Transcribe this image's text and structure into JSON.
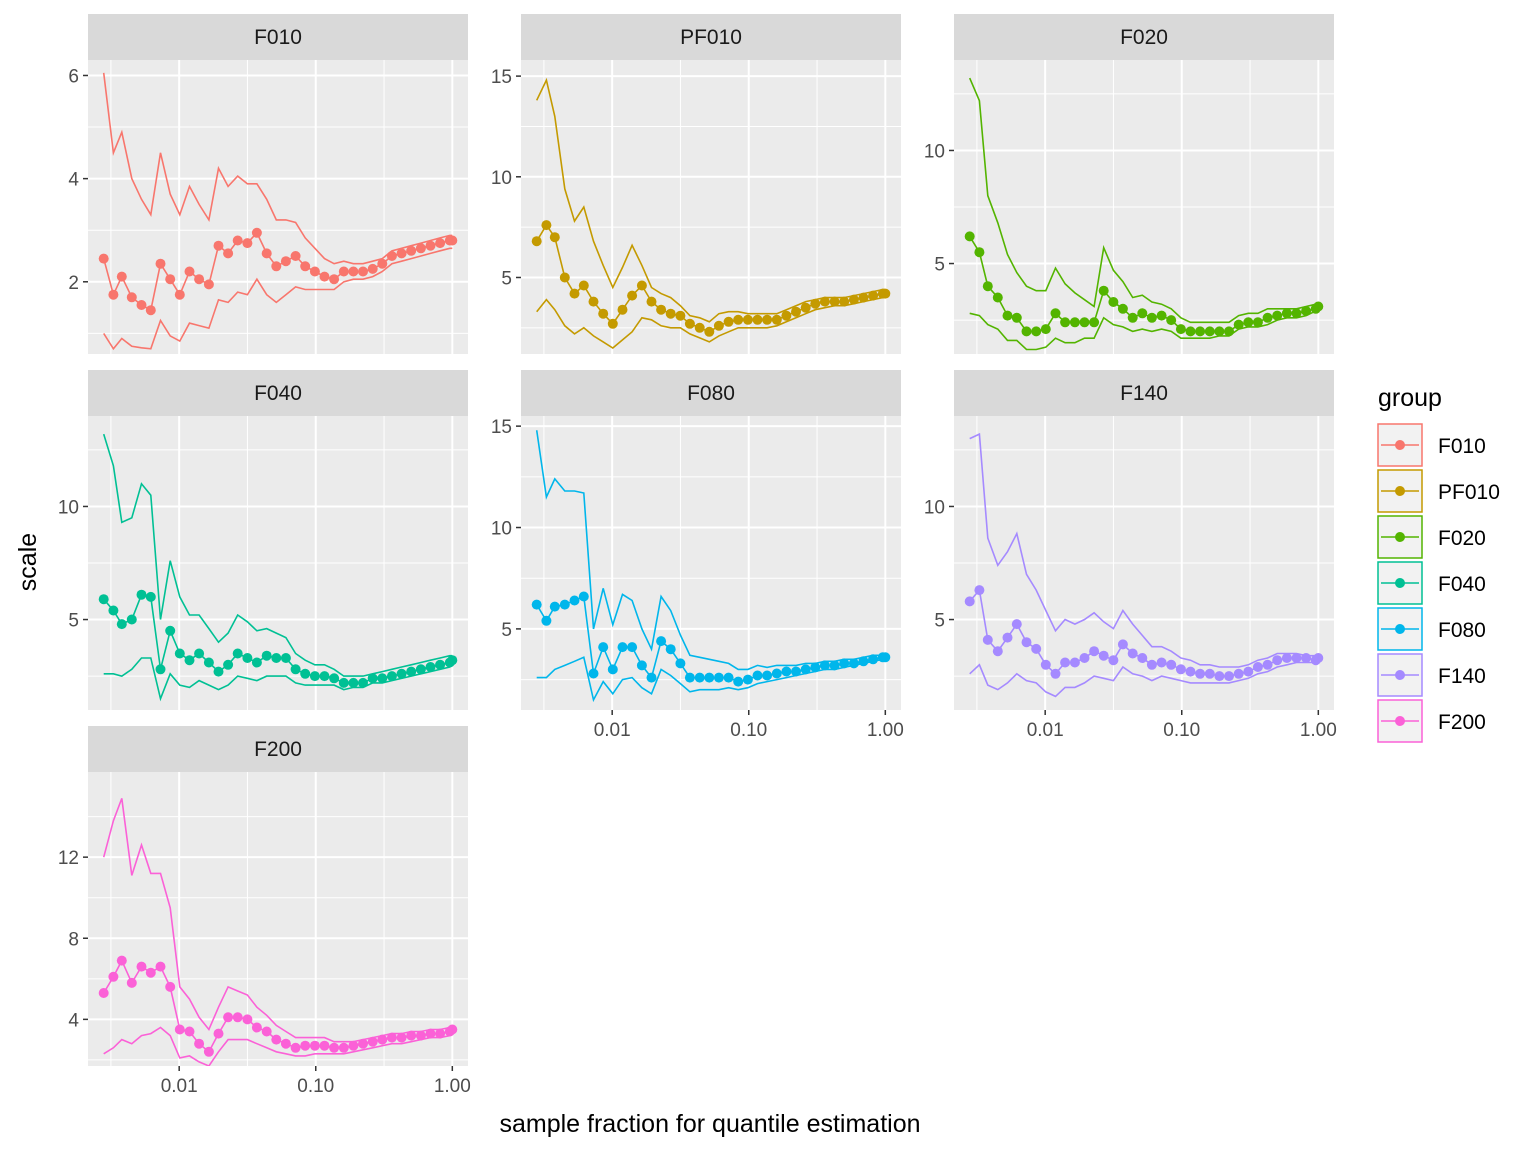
{
  "chart_data": {
    "type": "line",
    "xlabel": "sample fraction for quantile estimation",
    "ylabel": "scale",
    "x_scale": "log10",
    "x_ticks": [
      0.01,
      0.1,
      1.0
    ],
    "x_tick_labels": [
      "0.01",
      "0.10",
      "1.00"
    ],
    "xlim": [
      0.0028,
      1.0
    ],
    "grid": true,
    "legend": {
      "title": "group",
      "placement": "right",
      "entries": [
        "F010",
        "PF010",
        "F020",
        "F040",
        "F080",
        "F140",
        "F200"
      ]
    },
    "x": [
      0.0028,
      0.0033,
      0.0038,
      0.0045,
      0.0053,
      0.0062,
      0.0073,
      0.0086,
      0.0101,
      0.0119,
      0.014,
      0.0165,
      0.0194,
      0.0228,
      0.0268,
      0.0316,
      0.0371,
      0.0437,
      0.0514,
      0.0605,
      0.0712,
      0.0837,
      0.0985,
      0.1159,
      0.1363,
      0.1604,
      0.1887,
      0.222,
      0.2611,
      0.3072,
      0.3614,
      0.4252,
      0.5002,
      0.5885,
      0.6923,
      0.8144,
      0.9581,
      1.0
    ],
    "panels": [
      {
        "name": "F010",
        "color": "#F8766D",
        "ylim": [
          0.6,
          6.3
        ],
        "y_ticks": [
          2,
          4,
          6
        ],
        "scale": [
          2.45,
          1.75,
          2.1,
          1.7,
          1.55,
          1.45,
          2.35,
          2.05,
          1.75,
          2.2,
          2.05,
          1.95,
          2.7,
          2.55,
          2.8,
          2.75,
          2.95,
          2.55,
          2.3,
          2.4,
          2.5,
          2.3,
          2.2,
          2.1,
          2.05,
          2.2,
          2.2,
          2.2,
          2.25,
          2.35,
          2.5,
          2.55,
          2.6,
          2.65,
          2.7,
          2.75,
          2.8,
          2.8
        ],
        "upper": [
          6.05,
          4.5,
          4.9,
          4.0,
          3.6,
          3.3,
          4.5,
          3.7,
          3.3,
          3.85,
          3.5,
          3.2,
          4.2,
          3.85,
          4.05,
          3.9,
          3.9,
          3.6,
          3.2,
          3.2,
          3.15,
          2.85,
          2.65,
          2.45,
          2.35,
          2.4,
          2.35,
          2.35,
          2.4,
          2.45,
          2.6,
          2.65,
          2.7,
          2.75,
          2.8,
          2.85,
          2.9,
          2.9
        ],
        "lower": [
          1.0,
          0.7,
          0.9,
          0.75,
          0.72,
          0.7,
          1.25,
          0.95,
          0.85,
          1.2,
          1.15,
          1.1,
          1.65,
          1.6,
          1.8,
          1.75,
          2.05,
          1.75,
          1.6,
          1.75,
          1.9,
          1.85,
          1.85,
          1.85,
          1.85,
          2.0,
          2.05,
          2.05,
          2.1,
          2.2,
          2.35,
          2.4,
          2.45,
          2.5,
          2.55,
          2.6,
          2.65,
          2.65
        ]
      },
      {
        "name": "PF010",
        "color": "#C49A00",
        "ylim": [
          1.2,
          15.8
        ],
        "y_ticks": [
          5,
          10,
          15
        ],
        "scale": [
          6.8,
          7.6,
          7.0,
          5.0,
          4.2,
          4.6,
          3.8,
          3.2,
          2.7,
          3.4,
          4.1,
          4.6,
          3.8,
          3.4,
          3.2,
          3.1,
          2.7,
          2.5,
          2.3,
          2.6,
          2.8,
          2.9,
          2.9,
          2.9,
          2.9,
          2.9,
          3.1,
          3.3,
          3.5,
          3.7,
          3.8,
          3.8,
          3.8,
          3.9,
          4.0,
          4.1,
          4.2,
          4.2
        ],
        "upper": [
          13.8,
          14.8,
          13.0,
          9.4,
          7.8,
          8.5,
          6.8,
          5.6,
          4.5,
          5.5,
          6.6,
          5.6,
          4.5,
          4.2,
          4.0,
          3.6,
          3.1,
          3.0,
          2.8,
          3.2,
          3.3,
          3.3,
          3.2,
          3.2,
          3.2,
          3.2,
          3.4,
          3.6,
          3.8,
          3.9,
          4.0,
          4.0,
          4.0,
          4.1,
          4.2,
          4.3,
          4.4,
          4.4
        ],
        "lower": [
          3.3,
          3.9,
          3.4,
          2.6,
          2.2,
          2.5,
          2.1,
          1.8,
          1.5,
          1.9,
          2.3,
          3.0,
          2.9,
          2.6,
          2.5,
          2.5,
          2.2,
          2.0,
          1.8,
          2.1,
          2.3,
          2.5,
          2.5,
          2.5,
          2.5,
          2.6,
          2.8,
          3.0,
          3.2,
          3.4,
          3.5,
          3.6,
          3.6,
          3.7,
          3.8,
          3.9,
          4.0,
          4.0
        ]
      },
      {
        "name": "F020",
        "color": "#53B400",
        "ylim": [
          1.0,
          14.0
        ],
        "y_ticks": [
          5,
          10
        ],
        "scale": [
          6.2,
          5.5,
          4.0,
          3.5,
          2.7,
          2.6,
          2.0,
          2.0,
          2.1,
          2.8,
          2.4,
          2.4,
          2.4,
          2.4,
          3.8,
          3.3,
          3.0,
          2.6,
          2.8,
          2.6,
          2.7,
          2.5,
          2.1,
          2.0,
          2.0,
          2.0,
          2.0,
          2.0,
          2.3,
          2.4,
          2.4,
          2.6,
          2.7,
          2.8,
          2.8,
          2.9,
          3.0,
          3.1
        ],
        "upper": [
          13.2,
          12.2,
          8.0,
          6.8,
          5.4,
          4.6,
          4.0,
          3.8,
          3.8,
          4.8,
          4.1,
          3.7,
          3.4,
          3.1,
          5.7,
          4.7,
          4.2,
          3.5,
          3.6,
          3.3,
          3.2,
          3.0,
          2.6,
          2.4,
          2.4,
          2.4,
          2.4,
          2.4,
          2.7,
          2.8,
          2.8,
          3.0,
          3.0,
          3.0,
          3.0,
          3.1,
          3.2,
          3.2
        ],
        "lower": [
          2.8,
          2.7,
          2.3,
          2.1,
          1.6,
          1.6,
          1.2,
          1.2,
          1.3,
          1.7,
          1.5,
          1.5,
          1.7,
          1.7,
          2.6,
          2.3,
          2.2,
          2.0,
          2.1,
          2.0,
          2.1,
          2.0,
          1.7,
          1.7,
          1.7,
          1.7,
          1.8,
          1.8,
          2.1,
          2.2,
          2.2,
          2.3,
          2.5,
          2.6,
          2.6,
          2.7,
          2.9,
          3.0
        ]
      },
      {
        "name": "F040",
        "color": "#00C094",
        "ylim": [
          1.0,
          14.0
        ],
        "y_ticks": [
          5,
          10
        ],
        "scale": [
          5.9,
          5.4,
          4.8,
          5.0,
          6.1,
          6.0,
          2.8,
          4.5,
          3.5,
          3.2,
          3.5,
          3.1,
          2.7,
          3.0,
          3.5,
          3.3,
          3.1,
          3.4,
          3.3,
          3.3,
          2.8,
          2.6,
          2.5,
          2.5,
          2.4,
          2.2,
          2.2,
          2.2,
          2.4,
          2.4,
          2.5,
          2.6,
          2.7,
          2.8,
          2.9,
          3.0,
          3.1,
          3.2
        ],
        "upper": [
          13.2,
          11.8,
          9.3,
          9.5,
          11.0,
          10.5,
          5.0,
          7.6,
          6.0,
          5.2,
          5.2,
          4.6,
          4.0,
          4.4,
          5.2,
          4.9,
          4.5,
          4.6,
          4.4,
          4.2,
          3.5,
          3.2,
          3.0,
          3.0,
          2.8,
          2.5,
          2.5,
          2.5,
          2.6,
          2.7,
          2.8,
          2.9,
          3.0,
          3.1,
          3.2,
          3.3,
          3.4,
          3.4
        ],
        "lower": [
          2.6,
          2.6,
          2.5,
          2.8,
          3.3,
          3.3,
          1.5,
          2.6,
          2.1,
          2.0,
          2.3,
          2.1,
          1.9,
          2.1,
          2.5,
          2.4,
          2.3,
          2.5,
          2.5,
          2.5,
          2.2,
          2.1,
          2.1,
          2.1,
          2.1,
          1.9,
          2.0,
          2.0,
          2.2,
          2.2,
          2.3,
          2.4,
          2.5,
          2.6,
          2.7,
          2.8,
          2.9,
          3.0
        ]
      },
      {
        "name": "F080",
        "color": "#00B6EB",
        "ylim": [
          1.0,
          15.5
        ],
        "y_ticks": [
          5,
          10,
          15
        ],
        "scale": [
          6.2,
          5.4,
          6.1,
          6.2,
          6.4,
          6.6,
          2.8,
          4.1,
          3.0,
          4.1,
          4.1,
          3.2,
          2.6,
          4.4,
          4.0,
          3.3,
          2.6,
          2.6,
          2.6,
          2.6,
          2.6,
          2.4,
          2.5,
          2.7,
          2.7,
          2.8,
          2.9,
          2.9,
          3.0,
          3.1,
          3.2,
          3.2,
          3.3,
          3.3,
          3.4,
          3.5,
          3.6,
          3.6
        ],
        "upper": [
          14.8,
          11.5,
          12.4,
          11.8,
          11.8,
          11.7,
          5.0,
          7.0,
          5.2,
          6.7,
          6.4,
          5.0,
          4.0,
          6.6,
          5.9,
          4.7,
          3.7,
          3.6,
          3.5,
          3.4,
          3.3,
          3.0,
          3.0,
          3.2,
          3.1,
          3.2,
          3.2,
          3.2,
          3.3,
          3.3,
          3.4,
          3.4,
          3.5,
          3.5,
          3.6,
          3.7,
          3.7,
          3.7
        ],
        "lower": [
          2.6,
          2.6,
          3.0,
          3.2,
          3.4,
          3.6,
          1.5,
          2.4,
          1.8,
          2.5,
          2.6,
          2.1,
          1.8,
          3.0,
          2.7,
          2.3,
          1.9,
          2.0,
          2.0,
          2.0,
          2.1,
          2.0,
          2.1,
          2.3,
          2.4,
          2.5,
          2.6,
          2.7,
          2.8,
          2.9,
          3.0,
          3.0,
          3.1,
          3.2,
          3.3,
          3.4,
          3.5,
          3.5
        ]
      },
      {
        "name": "F140",
        "color": "#A58AFF",
        "ylim": [
          1.0,
          14.0
        ],
        "y_ticks": [
          5,
          10
        ],
        "scale": [
          5.8,
          6.3,
          4.1,
          3.6,
          4.2,
          4.8,
          4.0,
          3.7,
          3.0,
          2.6,
          3.1,
          3.1,
          3.3,
          3.6,
          3.4,
          3.2,
          3.9,
          3.5,
          3.3,
          3.0,
          3.1,
          3.0,
          2.8,
          2.7,
          2.6,
          2.6,
          2.5,
          2.5,
          2.6,
          2.7,
          2.9,
          3.0,
          3.2,
          3.3,
          3.3,
          3.3,
          3.2,
          3.3
        ],
        "upper": [
          13.0,
          13.2,
          8.6,
          7.4,
          8.0,
          8.8,
          7.0,
          6.3,
          5.4,
          4.5,
          5.0,
          4.8,
          5.0,
          5.3,
          4.9,
          4.6,
          5.4,
          4.8,
          4.3,
          3.8,
          3.8,
          3.6,
          3.3,
          3.2,
          3.0,
          3.0,
          2.9,
          2.9,
          2.9,
          3.0,
          3.2,
          3.3,
          3.5,
          3.5,
          3.5,
          3.4,
          3.4,
          3.4
        ],
        "lower": [
          2.6,
          3.0,
          2.1,
          1.9,
          2.2,
          2.6,
          2.3,
          2.2,
          1.8,
          1.6,
          2.0,
          2.0,
          2.2,
          2.5,
          2.4,
          2.3,
          2.9,
          2.6,
          2.5,
          2.3,
          2.5,
          2.4,
          2.3,
          2.2,
          2.2,
          2.2,
          2.2,
          2.2,
          2.3,
          2.4,
          2.6,
          2.7,
          2.9,
          3.0,
          3.1,
          3.1,
          3.1,
          3.1
        ]
      },
      {
        "name": "F200",
        "color": "#FB61D7",
        "ylim": [
          1.7,
          16.2
        ],
        "y_ticks": [
          4,
          8,
          12
        ],
        "scale": [
          5.3,
          6.1,
          6.9,
          5.8,
          6.6,
          6.3,
          6.6,
          5.6,
          3.5,
          3.4,
          2.8,
          2.4,
          3.3,
          4.1,
          4.1,
          4.0,
          3.6,
          3.4,
          3.0,
          2.8,
          2.6,
          2.7,
          2.7,
          2.7,
          2.6,
          2.6,
          2.7,
          2.8,
          2.9,
          3.0,
          3.1,
          3.1,
          3.2,
          3.2,
          3.3,
          3.3,
          3.4,
          3.5
        ],
        "upper": [
          12.0,
          13.8,
          14.9,
          11.1,
          12.6,
          11.2,
          11.2,
          9.5,
          5.6,
          5.0,
          4.1,
          3.5,
          4.6,
          5.6,
          5.4,
          5.2,
          4.6,
          4.2,
          3.7,
          3.4,
          3.1,
          3.1,
          3.1,
          3.1,
          2.9,
          2.9,
          2.9,
          3.0,
          3.1,
          3.2,
          3.3,
          3.3,
          3.4,
          3.4,
          3.5,
          3.5,
          3.6,
          3.6
        ],
        "lower": [
          2.3,
          2.6,
          3.0,
          2.8,
          3.2,
          3.3,
          3.6,
          3.2,
          2.1,
          2.2,
          1.9,
          1.7,
          2.4,
          3.0,
          3.0,
          3.0,
          2.8,
          2.6,
          2.4,
          2.3,
          2.2,
          2.2,
          2.3,
          2.3,
          2.3,
          2.3,
          2.4,
          2.5,
          2.6,
          2.7,
          2.8,
          2.8,
          2.9,
          3.0,
          3.1,
          3.1,
          3.2,
          3.3
        ]
      }
    ]
  }
}
